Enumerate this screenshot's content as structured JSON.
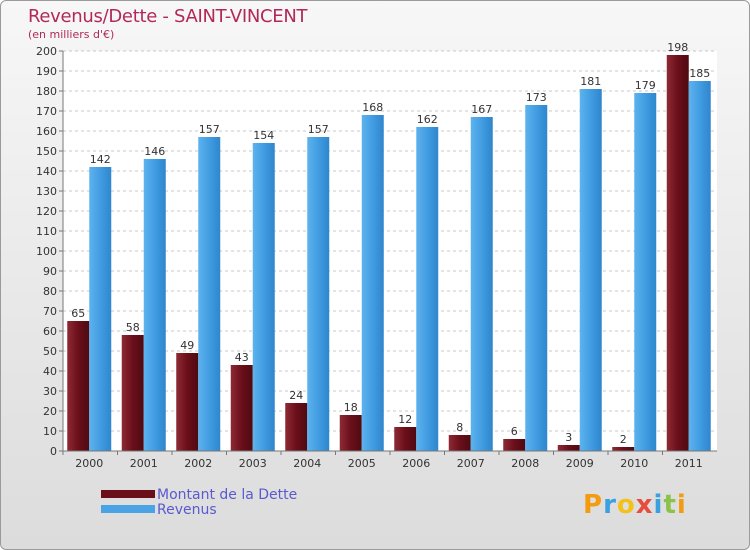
{
  "title": "Revenus/Dette - SAINT-VINCENT",
  "subtitle": "(en milliers d'€)",
  "logo": {
    "letters": [
      "P",
      "r",
      "o",
      "x",
      "i",
      "t",
      "i"
    ],
    "colors": [
      "#f39c12",
      "#3aa0e0",
      "#f2c11a",
      "#e74c3c",
      "#3aa0e0",
      "#8bc34a",
      "#f39c12"
    ]
  },
  "colors": {
    "dette": "#7a1622",
    "revenus": "#4aa3e4",
    "title": "#b2285a",
    "legend_text": "#5a5ad0"
  },
  "chart_data": {
    "type": "bar",
    "title": "Revenus/Dette - SAINT-VINCENT",
    "subtitle": "(en milliers d'€)",
    "categories": [
      "2000",
      "2001",
      "2002",
      "2003",
      "2004",
      "2005",
      "2006",
      "2007",
      "2008",
      "2009",
      "2010",
      "2011"
    ],
    "series": [
      {
        "name": "Montant de la Dette",
        "values": [
          65,
          58,
          49,
          43,
          24,
          18,
          12,
          8,
          6,
          3,
          2,
          198
        ]
      },
      {
        "name": "Revenus",
        "values": [
          142,
          146,
          157,
          154,
          157,
          168,
          162,
          167,
          173,
          181,
          179,
          185
        ]
      }
    ],
    "ylim": [
      0,
      200
    ],
    "ytick_step": 10,
    "grid": true,
    "legend_position": "bottom-left"
  }
}
